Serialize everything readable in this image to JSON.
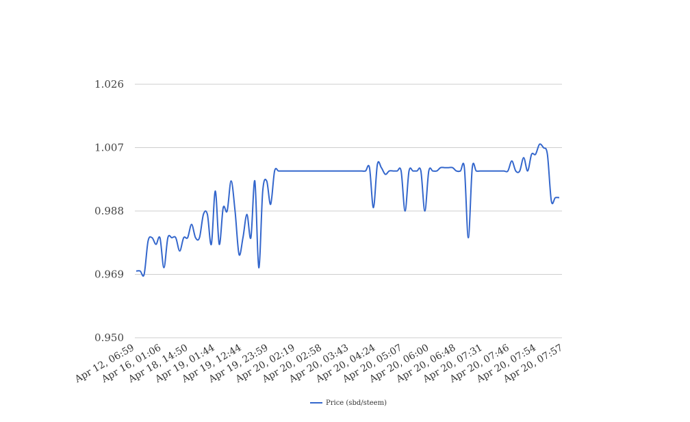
{
  "chart_data": {
    "type": "line",
    "title": "",
    "xlabel": "",
    "ylabel": "",
    "ylim": [
      0.95,
      1.026
    ],
    "y_ticks": [
      "0.950",
      "0.969",
      "0.988",
      "1.007",
      "1.026"
    ],
    "x_tick_labels": [
      "Apr 12, 06:59",
      "Apr 16, 01:06",
      "Apr 18, 14:50",
      "Apr 19, 01:44",
      "Apr 19, 12:44",
      "Apr 19, 23:59",
      "Apr 20, 02:19",
      "Apr 20, 02:58",
      "Apr 20, 03:43",
      "Apr 20, 04:24",
      "Apr 20, 05:07",
      "Apr 20, 06:00",
      "Apr 20, 06:48",
      "Apr 20, 07:31",
      "Apr 20, 07:46",
      "Apr 20, 07:54",
      "Apr 20, 07:57"
    ],
    "grid": true,
    "legend_position": "bottom",
    "series": [
      {
        "name": "Price (sbd/steem)",
        "color": "#3366cc",
        "values": [
          0.97,
          0.97,
          0.969,
          0.979,
          0.98,
          0.978,
          0.98,
          0.971,
          0.98,
          0.98,
          0.98,
          0.976,
          0.98,
          0.98,
          0.984,
          0.98,
          0.98,
          0.987,
          0.987,
          0.978,
          0.994,
          0.978,
          0.989,
          0.988,
          0.997,
          0.988,
          0.975,
          0.98,
          0.987,
          0.98,
          0.997,
          0.971,
          0.994,
          0.997,
          0.99,
          1.0,
          1.0,
          1.0,
          1.0,
          1.0,
          1.0,
          1.0,
          1.0,
          1.0,
          1.0,
          1.0,
          1.0,
          1.0,
          1.0,
          1.0,
          1.0,
          1.0,
          1.0,
          1.0,
          1.0,
          1.0,
          1.0,
          1.0,
          1.0,
          1.001,
          0.989,
          1.002,
          1.001,
          0.999,
          1.0,
          1.0,
          1.0,
          1.0,
          0.988,
          1.0,
          1.0,
          1.0,
          1.0,
          0.988,
          1.0,
          1.0,
          1.0,
          1.001,
          1.001,
          1.001,
          1.001,
          1.0,
          1.0,
          1.001,
          0.98,
          1.001,
          1.0,
          1.0,
          1.0,
          1.0,
          1.0,
          1.0,
          1.0,
          1.0,
          1.0,
          1.003,
          1.0,
          1.0,
          1.004,
          1.0,
          1.005,
          1.005,
          1.008,
          1.007,
          1.005,
          0.991,
          0.992,
          0.992
        ]
      }
    ]
  }
}
